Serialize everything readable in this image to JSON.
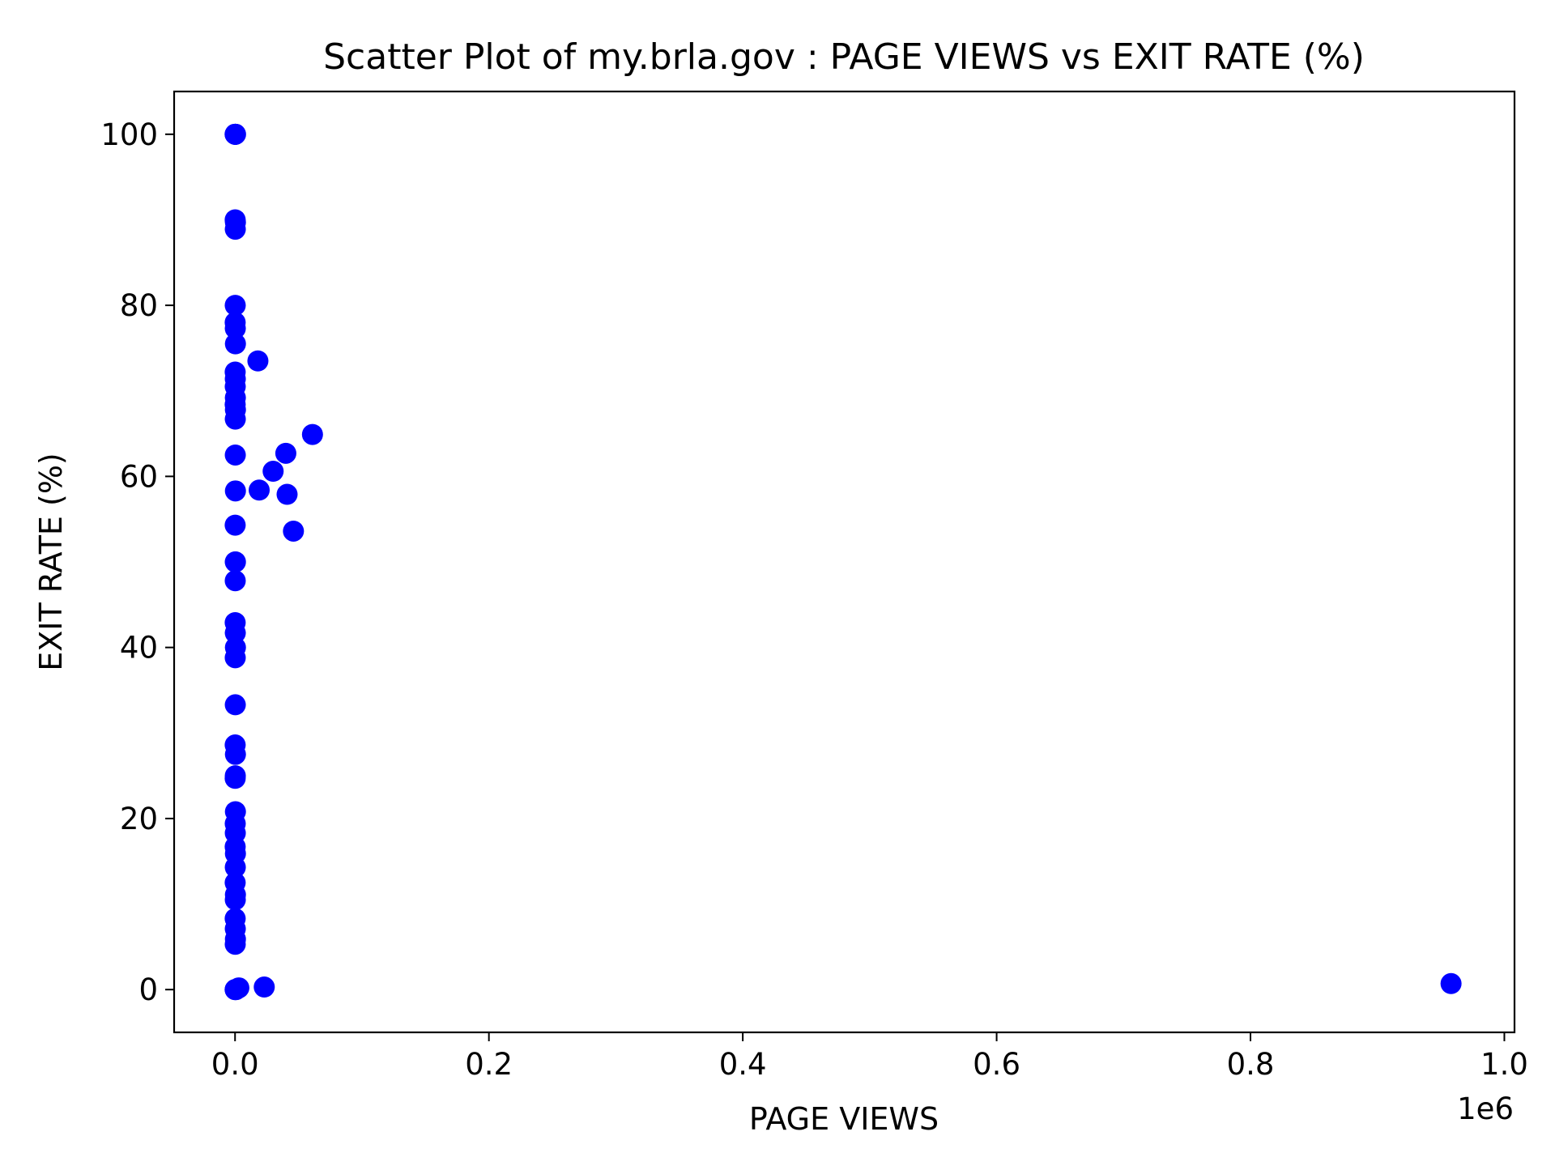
{
  "chart_data": {
    "type": "scatter",
    "title": "Scatter Plot of my.brla.gov : PAGE VIEWS vs EXIT RATE (%)",
    "xlabel": "PAGE VIEWS",
    "ylabel": "EXIT RATE (%)",
    "x_offset_label": "1e6",
    "xlim": [
      -0.048,
      1.008
    ],
    "ylim": [
      -5,
      105
    ],
    "x_scale_multiplier": 1000000,
    "x_ticks": [
      0.0,
      0.2,
      0.4,
      0.6,
      0.8,
      1.0
    ],
    "x_tick_labels": [
      "0.0",
      "0.2",
      "0.4",
      "0.6",
      "0.8",
      "1.0"
    ],
    "y_ticks": [
      0,
      20,
      40,
      60,
      80,
      100
    ],
    "y_tick_labels": [
      "0",
      "20",
      "40",
      "60",
      "80",
      "100"
    ],
    "grid": false,
    "marker_color": "#0000ff",
    "series": [
      {
        "points": [
          [
            50,
            100
          ],
          [
            100,
            100
          ],
          [
            200,
            100
          ],
          [
            400,
            100
          ],
          [
            100,
            90
          ],
          [
            300,
            89.7
          ],
          [
            200,
            88.9
          ],
          [
            150,
            80
          ],
          [
            100,
            78
          ],
          [
            200,
            77.3
          ],
          [
            300,
            75.5
          ],
          [
            100,
            72.2
          ],
          [
            200,
            71.4
          ],
          [
            150,
            70.5
          ],
          [
            250,
            69.2
          ],
          [
            100,
            68.4
          ],
          [
            300,
            67.8
          ],
          [
            200,
            66.7
          ],
          [
            200,
            62.5
          ],
          [
            300,
            58.3
          ],
          [
            100,
            54.3
          ],
          [
            200,
            50
          ],
          [
            300,
            50
          ],
          [
            150,
            47.8
          ],
          [
            100,
            42.9
          ],
          [
            200,
            41.7
          ],
          [
            300,
            40
          ],
          [
            150,
            38.8
          ],
          [
            200,
            33.3
          ],
          [
            100,
            28.6
          ],
          [
            300,
            27.5
          ],
          [
            200,
            25
          ],
          [
            100,
            24.7
          ],
          [
            300,
            20.8
          ],
          [
            150,
            19.4
          ],
          [
            200,
            18.3
          ],
          [
            100,
            16.7
          ],
          [
            300,
            15.9
          ],
          [
            200,
            14.3
          ],
          [
            100,
            12.5
          ],
          [
            300,
            11.1
          ],
          [
            200,
            10.5
          ],
          [
            100,
            8.3
          ],
          [
            200,
            7.1
          ],
          [
            300,
            5.9
          ],
          [
            150,
            5.3
          ],
          [
            50,
            0
          ],
          [
            150,
            0
          ],
          [
            300,
            0
          ],
          [
            800,
            0
          ],
          [
            3000,
            0.2
          ],
          [
            23000,
            0.3
          ],
          [
            18000,
            73.5
          ],
          [
            19000,
            58.4
          ],
          [
            30000,
            60.6
          ],
          [
            40000,
            62.7
          ],
          [
            41000,
            57.9
          ],
          [
            46000,
            53.6
          ],
          [
            61000,
            64.9
          ],
          [
            958000,
            0.7
          ]
        ]
      }
    ]
  }
}
